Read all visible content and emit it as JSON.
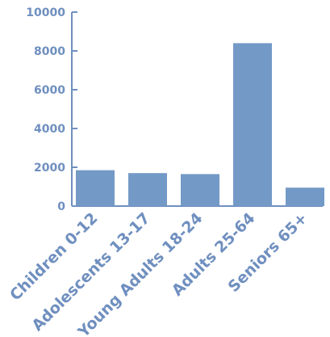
{
  "chart_data": {
    "type": "bar",
    "categories": [
      "Children 0-12",
      "Adolescents 13-17",
      "Young Adults 18-24",
      "Adults 25-64",
      "Seniors 65+"
    ],
    "values": [
      1850,
      1700,
      1650,
      8400,
      950
    ],
    "ylim": [
      0,
      10000
    ],
    "yticks": [
      0,
      2000,
      4000,
      6000,
      8000,
      10000
    ],
    "title": "",
    "xlabel": "",
    "ylabel": "",
    "grid": false,
    "bar_color": "#7399c6",
    "axis_color": "#6f8fbf"
  }
}
